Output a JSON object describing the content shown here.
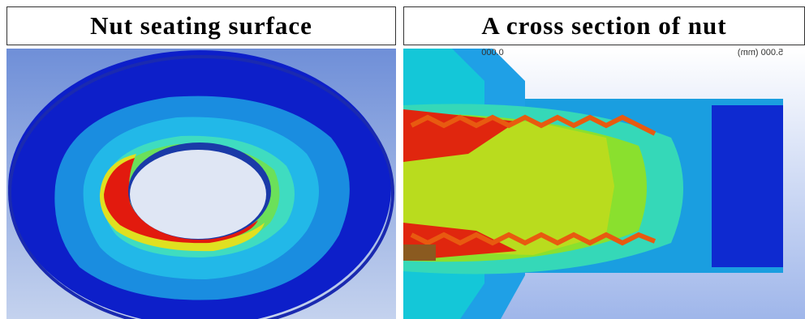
{
  "panels": [
    {
      "title": "Nut seating surface"
    },
    {
      "title": "A cross section of nut",
      "scale_start": "0.000",
      "scale_end": "5.000 (mm)"
    }
  ]
}
